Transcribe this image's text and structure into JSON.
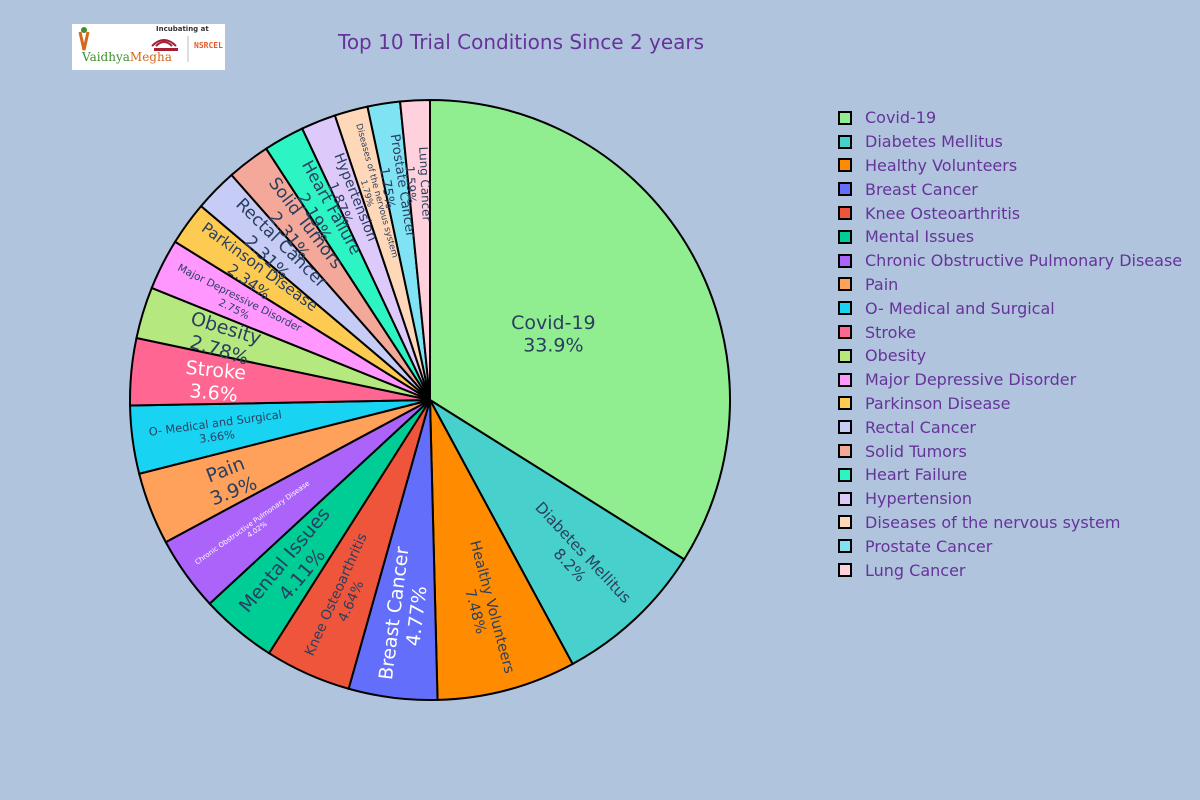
{
  "logo": {
    "word_a": "Vaidhya",
    "word_b": "Megha",
    "incubating": "Incubating at",
    "partner": "NSRCEL"
  },
  "chart_data": {
    "type": "pie",
    "title": "Top 10 Trial Conditions Since 2 years",
    "legend_position": "right",
    "slice_border": "#000000",
    "slices": [
      {
        "label": "Covid-19",
        "percent_label": "33.9%",
        "value": 33.9,
        "color": "#90ee90"
      },
      {
        "label": "Diabetes Mellitus",
        "percent_label": "8.2%",
        "value": 8.2,
        "color": "#48d1cc"
      },
      {
        "label": "Healthy Volunteers",
        "percent_label": "7.48%",
        "value": 7.48,
        "color": "#ff8c00"
      },
      {
        "label": "Breast Cancer",
        "percent_label": "4.77%",
        "value": 4.77,
        "color": "#636efa"
      },
      {
        "label": "Knee Osteoarthritis",
        "percent_label": "4.64%",
        "value": 4.64,
        "color": "#ef553b"
      },
      {
        "label": "Mental Issues",
        "percent_label": "4.11%",
        "value": 4.11,
        "color": "#00cc96"
      },
      {
        "label": "Chronic Obstructive Pulmonary Disease",
        "percent_label": "4.02%",
        "value": 4.02,
        "color": "#ab63fa"
      },
      {
        "label": "Pain",
        "percent_label": "3.9%",
        "value": 3.9,
        "color": "#ffa15a"
      },
      {
        "label": "O- Medical and Surgical",
        "percent_label": "3.66%",
        "value": 3.66,
        "color": "#19d3f3"
      },
      {
        "label": "Stroke",
        "percent_label": "3.6%",
        "value": 3.6,
        "color": "#ff6692"
      },
      {
        "label": "Obesity",
        "percent_label": "2.78%",
        "value": 2.78,
        "color": "#b6e880"
      },
      {
        "label": "Major Depressive Disorder",
        "percent_label": "2.75%",
        "value": 2.75,
        "color": "#ff97ff"
      },
      {
        "label": "Parkinson Disease",
        "percent_label": "2.34%",
        "value": 2.34,
        "color": "#fecb52"
      },
      {
        "label": "Rectal Cancer",
        "percent_label": "2.31%",
        "value": 2.31,
        "color": "#c6ccf6"
      },
      {
        "label": "Solid Tumors",
        "percent_label": "2.31%",
        "value": 2.31,
        "color": "#f4a89a"
      },
      {
        "label": "Heart Failure",
        "percent_label": "2.19%",
        "value": 2.19,
        "color": "#2cf5c3"
      },
      {
        "label": "Hypertension",
        "percent_label": "1.87%",
        "value": 1.87,
        "color": "#decafa"
      },
      {
        "label": "Diseases of the nervous system",
        "percent_label": "1.79%",
        "value": 1.79,
        "color": "#fed8b8"
      },
      {
        "label": "Prostate Cancer",
        "percent_label": "1.75%",
        "value": 1.75,
        "color": "#7fe3f3"
      },
      {
        "label": "Lung Cancer",
        "percent_label": "1.59%",
        "value": 1.59,
        "color": "#ffd1dc"
      }
    ]
  }
}
